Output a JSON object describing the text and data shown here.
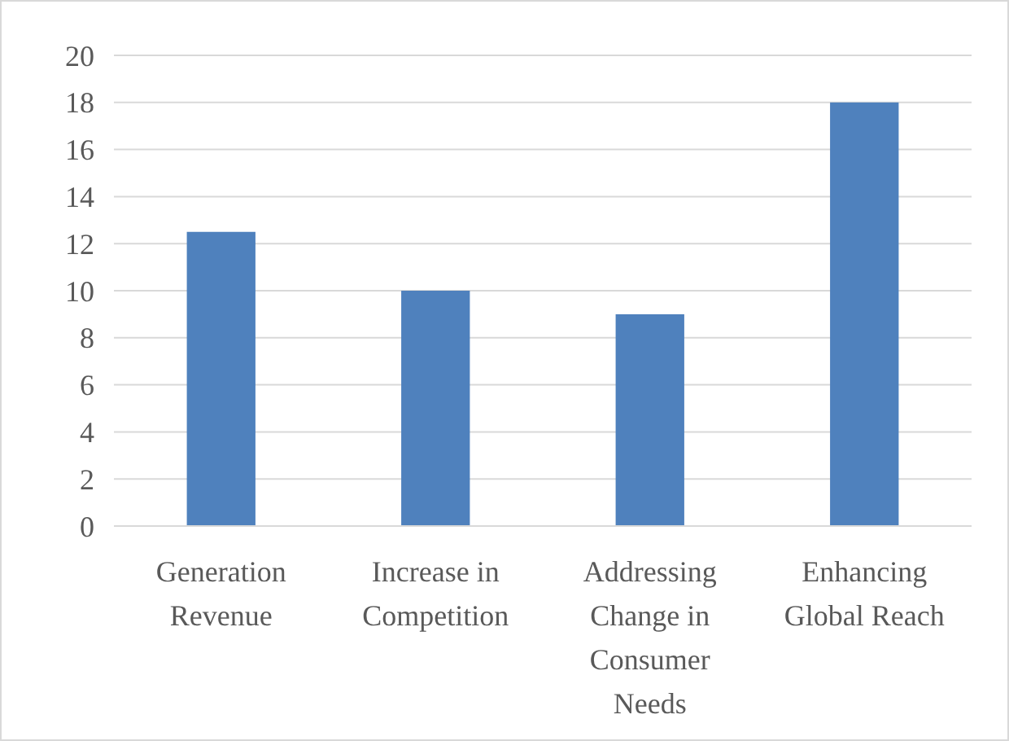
{
  "chart_data": {
    "type": "bar",
    "categories": [
      "Generation Revenue",
      "Increase in Competition",
      "Addressing Change in Consumer Needs",
      "Enhancing Global Reach"
    ],
    "values": [
      12.5,
      10,
      9,
      18
    ],
    "color": "#4f81bd",
    "ylim": [
      0,
      20
    ],
    "yticks": [
      0,
      2,
      4,
      6,
      8,
      10,
      12,
      14,
      16,
      18,
      20
    ],
    "grid": "y"
  }
}
